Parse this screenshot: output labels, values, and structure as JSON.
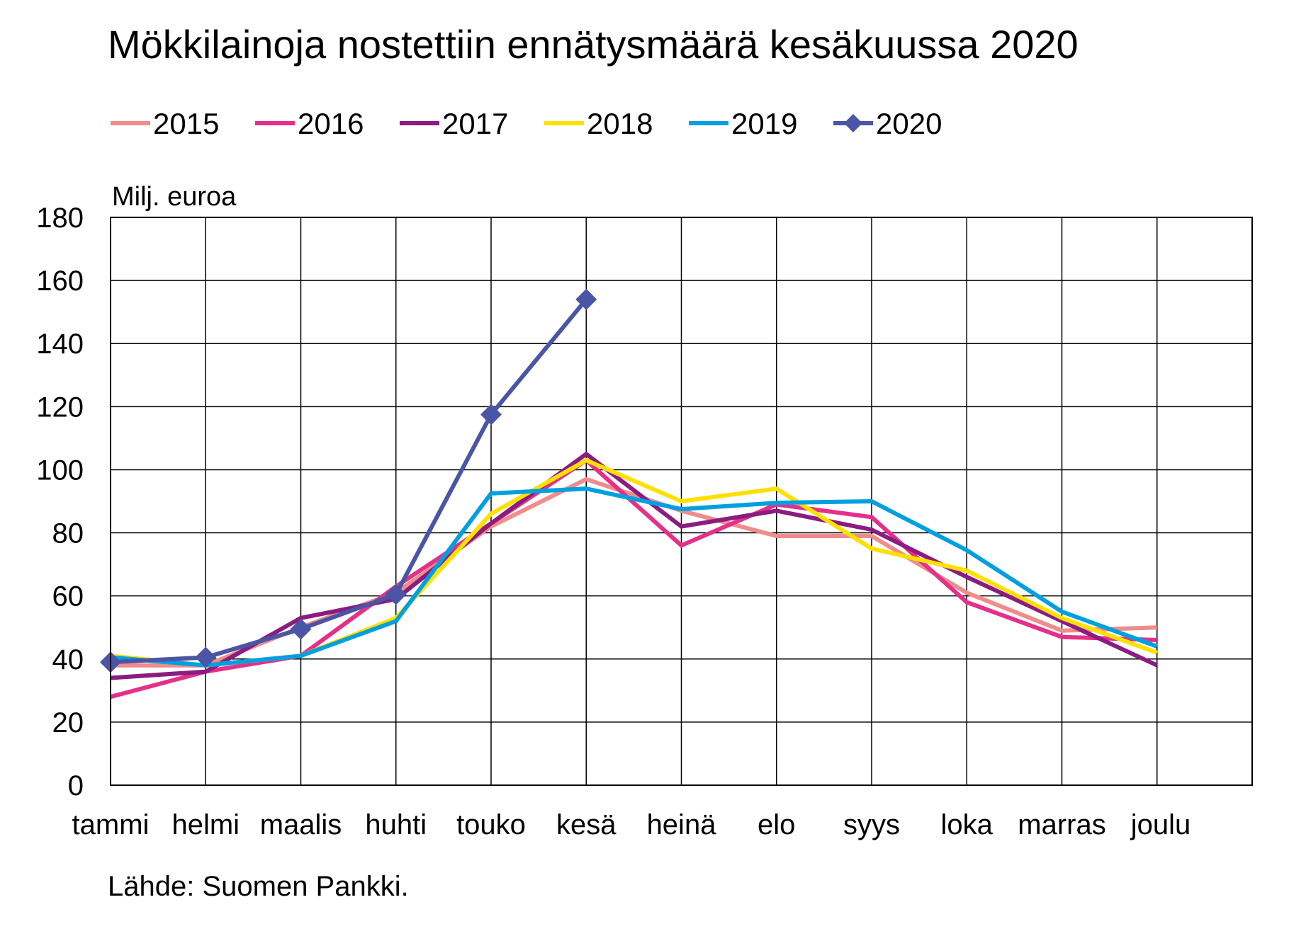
{
  "chart_data": {
    "type": "line",
    "title": "Mökkilainoja nostettiin ennätysmäärä kesäkuussa 2020",
    "ylabel": "Milj. euroa",
    "xlabel": "",
    "source": "Lähde: Suomen Pankki.",
    "categories": [
      "tammi",
      "helmi",
      "maalis",
      "huhti",
      "touko",
      "kesä",
      "heinä",
      "elo",
      "syys",
      "loka",
      "marras",
      "joulu"
    ],
    "ylim": [
      0,
      180
    ],
    "yticks": [
      0,
      20,
      40,
      60,
      80,
      100,
      120,
      140,
      160,
      180
    ],
    "grid": true,
    "legend_position": "top",
    "series": [
      {
        "name": "2015",
        "color": "#F08C8C",
        "marker": "none",
        "values": [
          38,
          38,
          50,
          61,
          82,
          97,
          87,
          79,
          79,
          61,
          49,
          50
        ]
      },
      {
        "name": "2016",
        "color": "#E5308A",
        "marker": "none",
        "values": [
          28,
          36,
          41,
          63,
          83,
          103,
          76,
          89,
          85,
          58,
          47,
          46
        ]
      },
      {
        "name": "2017",
        "color": "#8B1C80",
        "marker": "none",
        "values": [
          34,
          36,
          53,
          59,
          83,
          105,
          82,
          87,
          81,
          66,
          52,
          38
        ]
      },
      {
        "name": "2018",
        "color": "#FFE000",
        "marker": "none",
        "values": [
          41,
          38,
          41,
          53,
          86,
          103,
          90,
          94,
          75,
          68,
          53,
          42
        ]
      },
      {
        "name": "2019",
        "color": "#00A0E0",
        "marker": "none",
        "values": [
          40.5,
          38,
          41,
          52,
          92.5,
          94,
          87.5,
          89.5,
          90,
          74.5,
          55,
          44
        ]
      },
      {
        "name": "2020",
        "color": "#4B55A5",
        "marker": "diamond",
        "values": [
          39,
          40.5,
          49.5,
          60.5,
          117.5,
          154,
          null,
          null,
          null,
          null,
          null,
          null
        ]
      }
    ]
  }
}
